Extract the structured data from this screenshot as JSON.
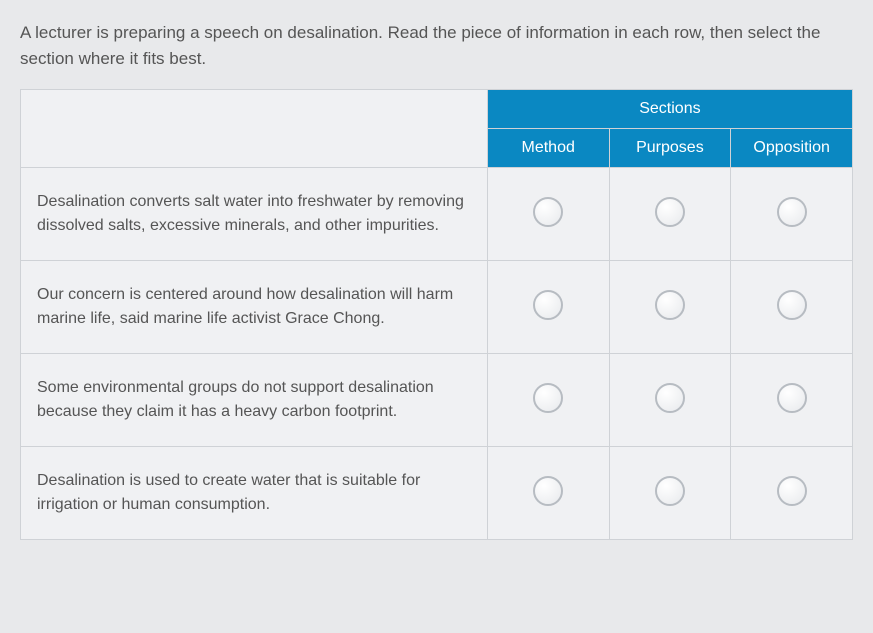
{
  "instructions": "A lecturer is preparing a speech on desalination. Read the piece of information in each row, then select the section where it fits best.",
  "table": {
    "sections_header": "Sections",
    "columns": [
      "Method",
      "Purposes",
      "Opposition"
    ],
    "rows": [
      {
        "desc": "Desalination converts salt water into freshwater by removing dissolved salts, excessive minerals, and other impurities."
      },
      {
        "desc": "Our concern is centered around how desalination will harm marine life, said marine life activist Grace Chong."
      },
      {
        "desc": "Some environmental groups do not support desalination because they claim it has a heavy carbon footprint."
      },
      {
        "desc": "Desalination is used to create water that is suitable for irrigation or human consumption."
      }
    ]
  },
  "colors": {
    "header_bg": "#0a88c2",
    "header_fg": "#ffffff",
    "body_bg": "#e8e9eb",
    "cell_bg": "#f0f1f3",
    "border": "#cfd2d6",
    "text": "#555555",
    "radio_border": "#b7bcc2"
  }
}
